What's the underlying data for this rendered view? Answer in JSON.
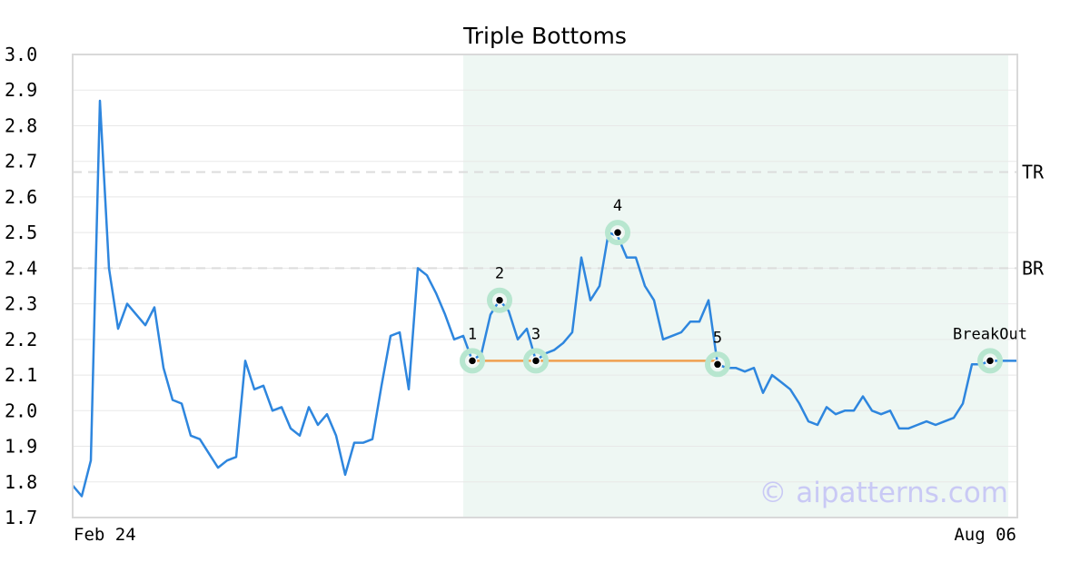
{
  "chart_data": {
    "type": "line",
    "title": "Triple Bottoms",
    "xlabel": "",
    "ylabel": "",
    "x_tick_labels": [
      "Feb 24",
      "Aug 06"
    ],
    "ylim": [
      1.7,
      3.0
    ],
    "yticks": [
      1.7,
      1.8,
      1.9,
      2.0,
      2.1,
      2.2,
      2.3,
      2.4,
      2.5,
      2.6,
      2.7,
      2.8,
      2.9,
      3.0
    ],
    "ytick_labels": [
      "1.7",
      "1.8",
      "1.9",
      "2.0",
      "2.1",
      "2.2",
      "2.3",
      "2.4",
      "2.5",
      "2.6",
      "2.7",
      "2.8",
      "2.9",
      "3.0"
    ],
    "grid": true,
    "series": [
      {
        "color": "#2e86de",
        "values": [
          1.79,
          1.76,
          1.86,
          2.87,
          2.4,
          2.23,
          2.3,
          2.27,
          2.24,
          2.29,
          2.12,
          2.03,
          2.02,
          1.93,
          1.92,
          1.88,
          1.84,
          1.86,
          1.87,
          2.14,
          2.06,
          2.07,
          2.0,
          2.01,
          1.95,
          1.93,
          2.01,
          1.96,
          1.99,
          1.93,
          1.82,
          1.91,
          1.91,
          1.92,
          2.07,
          2.21,
          2.22,
          2.06,
          2.4,
          2.38,
          2.33,
          2.27,
          2.2,
          2.21,
          2.14,
          2.16,
          2.27,
          2.31,
          2.28,
          2.2,
          2.23,
          2.14,
          2.16,
          2.17,
          2.19,
          2.22,
          2.43,
          2.31,
          2.35,
          2.5,
          2.49,
          2.43,
          2.43,
          2.35,
          2.31,
          2.2,
          2.21,
          2.22,
          2.25,
          2.25,
          2.31,
          2.13,
          2.12,
          2.12,
          2.11,
          2.12,
          2.05,
          2.1,
          2.08,
          2.06,
          2.02,
          1.97,
          1.96,
          2.01,
          1.99,
          2.0,
          2.0,
          2.04,
          2.0,
          1.99,
          2.0,
          1.95,
          1.95,
          1.96,
          1.97,
          1.96,
          1.97,
          1.98,
          2.02,
          2.13,
          2.13,
          2.14,
          2.14,
          2.14,
          2.14
        ]
      }
    ],
    "pattern_region": {
      "start_index": 43,
      "end_index": 103,
      "color": "#eef7f3"
    },
    "pattern_points": [
      {
        "label": "1",
        "index": 44,
        "value": 2.14
      },
      {
        "label": "2",
        "index": 47,
        "value": 2.31
      },
      {
        "label": "3",
        "index": 51,
        "value": 2.14
      },
      {
        "label": "4",
        "index": 60,
        "value": 2.5
      },
      {
        "label": "5",
        "index": 71,
        "value": 2.13
      },
      {
        "label": "BreakOut",
        "index": 101,
        "value": 2.14
      }
    ],
    "support_line": {
      "from_index": 44,
      "to_index": 71,
      "value": 2.14,
      "color": "#f0a050"
    },
    "reference_lines": [
      {
        "label": "TR",
        "value": 2.67
      },
      {
        "label": "BR",
        "value": 2.4
      }
    ],
    "watermark": "© aipatterns.com"
  }
}
